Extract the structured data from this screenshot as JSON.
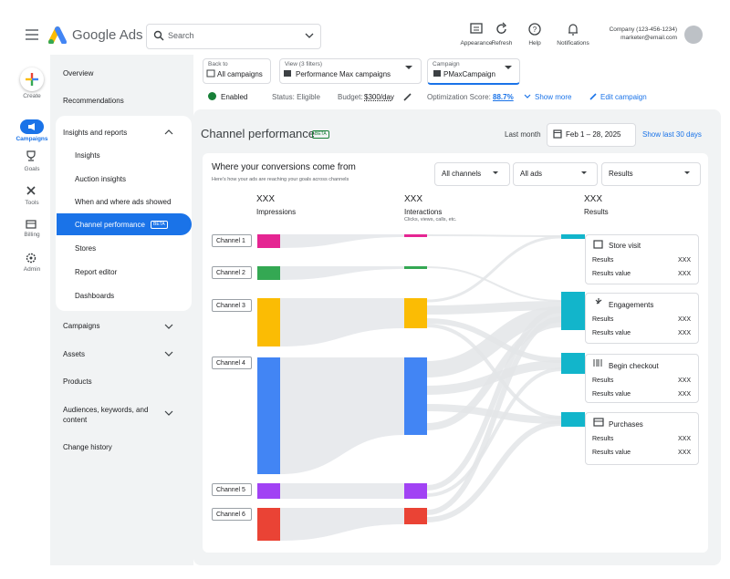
{
  "header": {
    "product": "Google Ads",
    "search_placeholder": "Search",
    "actions": [
      "Appearance",
      "Refresh",
      "Help",
      "Notifications"
    ],
    "account_name": "Company (123-456-1234)",
    "account_email": "marketer@email.com"
  },
  "nav_rail": [
    "Create",
    "Campaigns",
    "Goals",
    "Tools",
    "Billing",
    "Admin"
  ],
  "side_nav": {
    "top": [
      "Overview",
      "Recommendations"
    ],
    "section": "Insights and reports",
    "section_items": [
      "Insights",
      "Auction insights",
      "When and where ads showed",
      "Channel performance",
      "Stores",
      "Report editor",
      "Dashboards"
    ],
    "badge": "BETA",
    "bottom": [
      "Campaigns",
      "Assets",
      "Products",
      "Audiences, keywords, and content",
      "Change history"
    ]
  },
  "filters": [
    {
      "label": "Back to",
      "value": "All campaigns"
    },
    {
      "label": "View (3 filters)",
      "value": "Performance Max campaigns"
    },
    {
      "label": "Campaign",
      "value": "PMaxCampaign"
    }
  ],
  "status": {
    "state": "Enabled",
    "status": "Status: Eligible",
    "budget_label": "Budget:",
    "budget": "$300/day",
    "optimization_label": "Optimization Score:",
    "optimization_score": "88.7%",
    "show_more": "Show more",
    "edit": "Edit campaign"
  },
  "page": {
    "title": "Channel performance",
    "badge": "BETA",
    "date_label": "Last month",
    "date_range": "Feb 1 – 28, 2025",
    "show_last": "Show last 30 days"
  },
  "card": {
    "title": "Where your conversions come from",
    "subtitle": "Here's how your ads are reaching your goals across channels",
    "dropdowns": [
      "All channels",
      "All ads",
      "Results"
    ],
    "columns": [
      {
        "value": "XXX",
        "label": "Impressions"
      },
      {
        "value": "XXX",
        "label": "Interactions",
        "note": "Clicks, views, calls, etc."
      },
      {
        "value": "XXX",
        "label": "Results"
      }
    ],
    "channels": [
      "Channel 1",
      "Channel 2",
      "Channel 3",
      "Channel 4",
      "Channel 5",
      "Channel 6"
    ],
    "results": [
      {
        "title": "Store visit",
        "rows": [
          {
            "label": "Results",
            "value": "XXX"
          },
          {
            "label": "Results value",
            "value": "XXX"
          }
        ]
      },
      {
        "title": "Engagements",
        "rows": [
          {
            "label": "Results",
            "value": "XXX"
          },
          {
            "label": "Results value",
            "value": "XXX"
          }
        ]
      },
      {
        "title": "Begin checkout",
        "rows": [
          {
            "label": "Results",
            "value": "XXX"
          },
          {
            "label": "Results value",
            "value": "XXX"
          }
        ]
      },
      {
        "title": "Purchases",
        "rows": [
          {
            "label": "Results",
            "value": "XXX"
          },
          {
            "label": "Results value",
            "value": "XXX"
          }
        ]
      }
    ]
  }
}
